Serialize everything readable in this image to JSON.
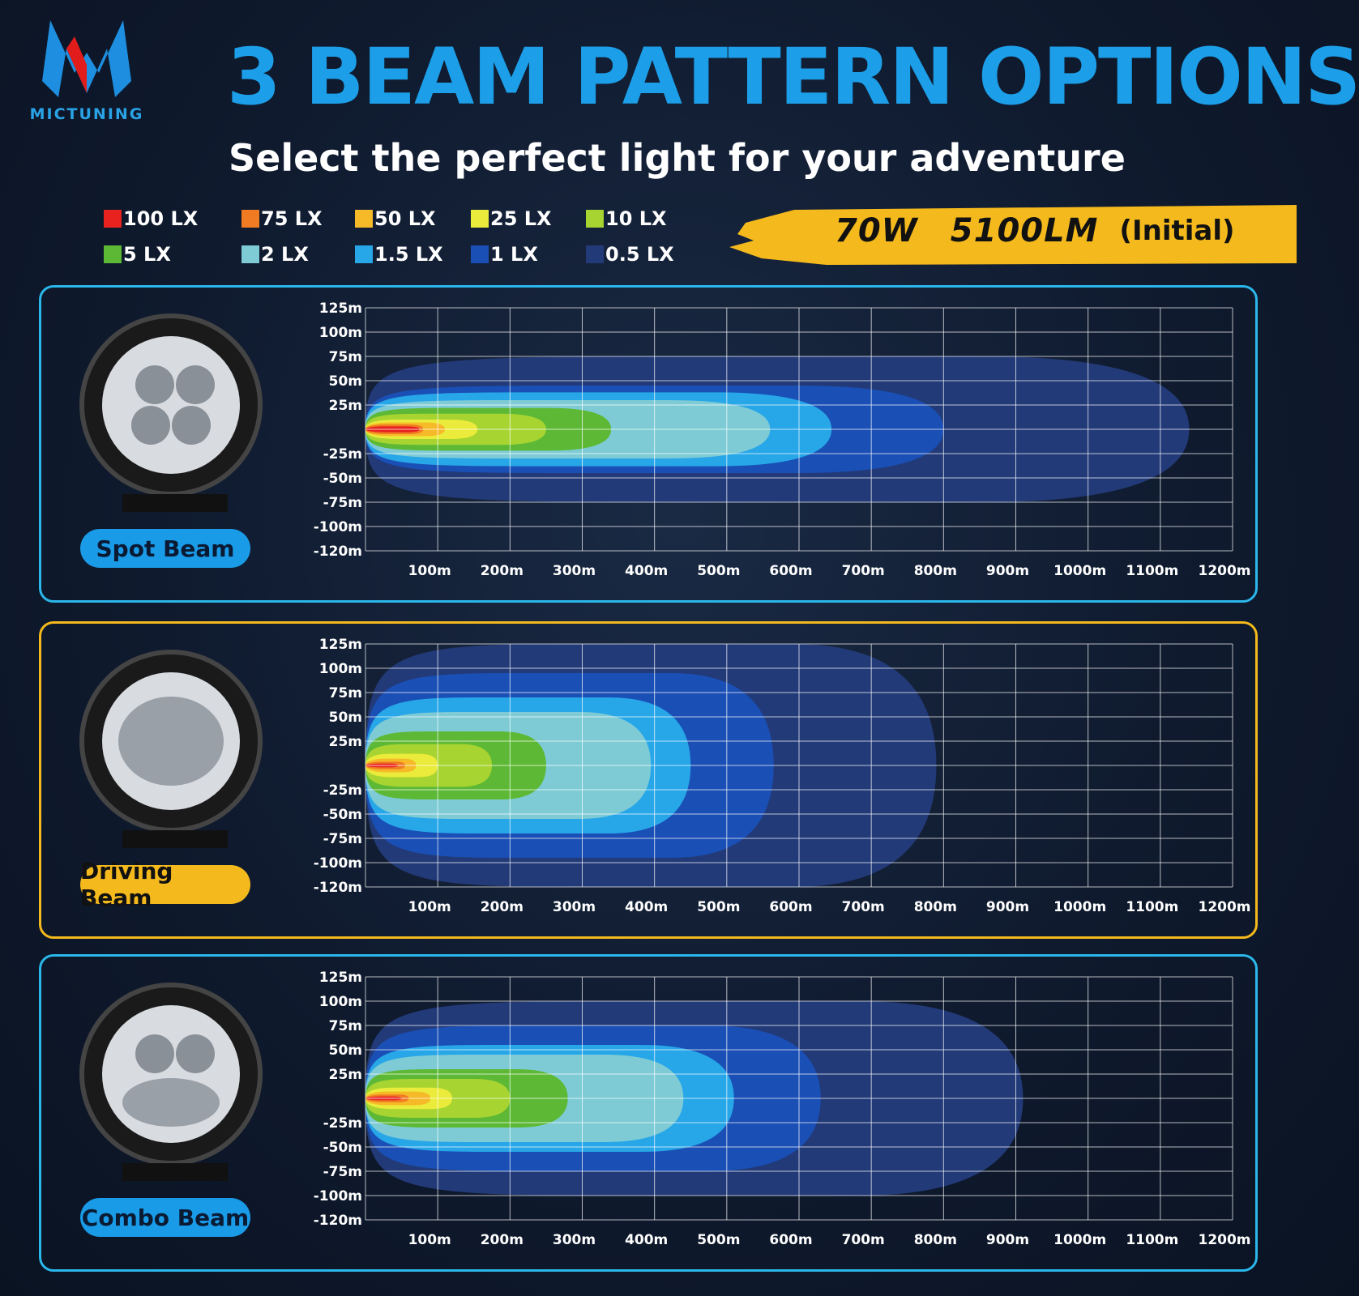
{
  "brand": {
    "name": "MICTUNING"
  },
  "header": {
    "title": "3 BEAM PATTERN OPTIONS",
    "subtitle": "Select the perfect light for your adventure"
  },
  "legend": [
    {
      "label": "100 LX",
      "color": "#e8231f"
    },
    {
      "label": "75 LX",
      "color": "#f07b22"
    },
    {
      "label": "50 LX",
      "color": "#f6b928"
    },
    {
      "label": "25 LX",
      "color": "#eaeb3a"
    },
    {
      "label": "10 LX",
      "color": "#a8d432"
    },
    {
      "label": "5 LX",
      "color": "#5db935"
    },
    {
      "label": "2 LX",
      "color": "#7ecbd6"
    },
    {
      "label": "1.5 LX",
      "color": "#27a6e8"
    },
    {
      "label": "1 LX",
      "color": "#1a4fb5"
    },
    {
      "label": "0.5 LX",
      "color": "#223a78"
    }
  ],
  "badge": {
    "power": "70W",
    "lumen": "5100LM",
    "note": "(Initial)"
  },
  "colors": {
    "panel_blue": "#2bb7ea",
    "panel_gold": "#f4b91c",
    "grid": "#ffffff"
  },
  "chart_data": [
    {
      "type": "heatmap",
      "name_label": "Spot Beam",
      "x_ticks": [
        "100m",
        "200m",
        "300m",
        "400m",
        "500m",
        "600m",
        "700m",
        "800m",
        "900m",
        "1000m",
        "1100m",
        "1200m"
      ],
      "y_ticks": [
        "125m",
        "100m",
        "75m",
        "50m",
        "25m",
        "",
        "-25m",
        "-50m",
        "-75m",
        "-100m",
        "-120m"
      ],
      "xlim": [
        0,
        1200
      ],
      "ylim": [
        -125,
        125
      ],
      "grid": true,
      "contours": [
        {
          "lux": "0.5 LX",
          "reach": 1140,
          "width": 75
        },
        {
          "lux": "1 LX",
          "reach": 800,
          "width": 45
        },
        {
          "lux": "1.5 LX",
          "reach": 645,
          "width": 38
        },
        {
          "lux": "2 LX",
          "reach": 560,
          "width": 30
        },
        {
          "lux": "5 LX",
          "reach": 340,
          "width": 22
        },
        {
          "lux": "10 LX",
          "reach": 250,
          "width": 16
        },
        {
          "lux": "25 LX",
          "reach": 155,
          "width": 10
        },
        {
          "lux": "50 LX",
          "reach": 110,
          "width": 7
        },
        {
          "lux": "75 LX",
          "reach": 80,
          "width": 5
        },
        {
          "lux": "100 LX",
          "reach": 75,
          "width": 3
        }
      ]
    },
    {
      "type": "heatmap",
      "name_label": "Driving Beam",
      "x_ticks": [
        "100m",
        "200m",
        "300m",
        "400m",
        "500m",
        "600m",
        "700m",
        "800m",
        "900m",
        "1000m",
        "1100m",
        "1200m"
      ],
      "y_ticks": [
        "125m",
        "100m",
        "75m",
        "50m",
        "25m",
        "",
        "-25m",
        "-50m",
        "-75m",
        "-100m",
        "-120m"
      ],
      "xlim": [
        0,
        1200
      ],
      "ylim": [
        -125,
        125
      ],
      "grid": true,
      "contours": [
        {
          "lux": "0.5 LX",
          "reach": 790,
          "width": 125
        },
        {
          "lux": "1 LX",
          "reach": 565,
          "width": 95
        },
        {
          "lux": "1.5 LX",
          "reach": 450,
          "width": 70
        },
        {
          "lux": "2 LX",
          "reach": 395,
          "width": 55
        },
        {
          "lux": "5 LX",
          "reach": 250,
          "width": 35
        },
        {
          "lux": "10 LX",
          "reach": 175,
          "width": 22
        },
        {
          "lux": "25 LX",
          "reach": 100,
          "width": 12
        },
        {
          "lux": "50 LX",
          "reach": 70,
          "width": 7
        },
        {
          "lux": "75 LX",
          "reach": 55,
          "width": 4
        },
        {
          "lux": "100 LX",
          "reach": 45,
          "width": 2
        }
      ]
    },
    {
      "type": "heatmap",
      "name_label": "Combo Beam",
      "x_ticks": [
        "100m",
        "200m",
        "300m",
        "400m",
        "500m",
        "600m",
        "700m",
        "800m",
        "900m",
        "1000m",
        "1100m",
        "1200m"
      ],
      "y_ticks": [
        "125m",
        "100m",
        "75m",
        "50m",
        "25m",
        "",
        "-25m",
        "-50m",
        "-75m",
        "-100m",
        "-120m"
      ],
      "xlim": [
        0,
        1200
      ],
      "ylim": [
        -125,
        125
      ],
      "grid": true,
      "contours": [
        {
          "lux": "0.5 LX",
          "reach": 910,
          "width": 100
        },
        {
          "lux": "1 LX",
          "reach": 630,
          "width": 75
        },
        {
          "lux": "1.5 LX",
          "reach": 510,
          "width": 55
        },
        {
          "lux": "2 LX",
          "reach": 440,
          "width": 45
        },
        {
          "lux": "5 LX",
          "reach": 280,
          "width": 30
        },
        {
          "lux": "10 LX",
          "reach": 200,
          "width": 20
        },
        {
          "lux": "25 LX",
          "reach": 120,
          "width": 11
        },
        {
          "lux": "50 LX",
          "reach": 90,
          "width": 7
        },
        {
          "lux": "75 LX",
          "reach": 60,
          "width": 4
        },
        {
          "lux": "100 LX",
          "reach": 50,
          "width": 2
        }
      ]
    }
  ]
}
